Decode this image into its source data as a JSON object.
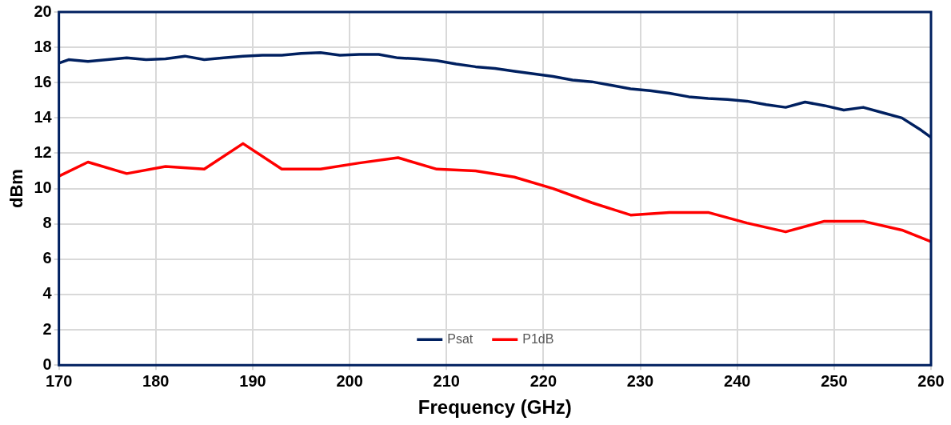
{
  "chart_data": {
    "type": "line",
    "xlabel": "Frequency (GHz)",
    "ylabel": "dBm",
    "xlim": [
      170,
      260
    ],
    "xticks": [
      170,
      180,
      190,
      200,
      210,
      220,
      230,
      240,
      250,
      260
    ],
    "ylim": [
      0,
      20
    ],
    "yticks": [
      0,
      2,
      4,
      6,
      8,
      10,
      12,
      14,
      16,
      18,
      20
    ],
    "grid": true,
    "legend": "bottom",
    "marker": "none",
    "line_style": "solid",
    "series": [
      {
        "name": "Psat",
        "color": "#002060",
        "x": [
          170,
          171,
          173,
          175,
          177,
          179,
          181,
          183,
          185,
          187,
          189,
          191,
          193,
          195,
          197,
          199,
          201,
          203,
          205,
          207,
          209,
          211,
          213,
          215,
          217,
          219,
          221,
          223,
          225,
          227,
          229,
          231,
          233,
          235,
          237,
          239,
          241,
          243,
          245,
          247,
          249,
          251,
          253,
          255,
          257,
          259,
          260
        ],
        "values": [
          17.1,
          17.3,
          17.2,
          17.3,
          17.4,
          17.3,
          17.35,
          17.5,
          17.3,
          17.4,
          17.5,
          17.55,
          17.55,
          17.65,
          17.7,
          17.55,
          17.6,
          17.6,
          17.4,
          17.35,
          17.25,
          17.05,
          16.9,
          16.8,
          16.65,
          16.5,
          16.35,
          16.15,
          16.05,
          15.85,
          15.65,
          15.55,
          15.4,
          15.2,
          15.1,
          15.05,
          14.95,
          14.75,
          14.6,
          14.9,
          14.7,
          14.45,
          14.6,
          14.3,
          14.0,
          13.3,
          12.9
        ]
      },
      {
        "name": "P1dB",
        "color": "#ff0000",
        "x": [
          170,
          173,
          177,
          181,
          185,
          189,
          193,
          197,
          201,
          205,
          209,
          213,
          217,
          221,
          225,
          229,
          233,
          237,
          241,
          245,
          249,
          253,
          257,
          260
        ],
        "values": [
          10.7,
          11.5,
          10.85,
          11.25,
          11.1,
          12.55,
          11.1,
          11.1,
          11.45,
          11.75,
          11.1,
          11.0,
          10.65,
          10.0,
          9.2,
          8.5,
          8.65,
          8.65,
          8.05,
          7.55,
          8.15,
          8.15,
          7.65,
          7.0
        ]
      }
    ]
  }
}
